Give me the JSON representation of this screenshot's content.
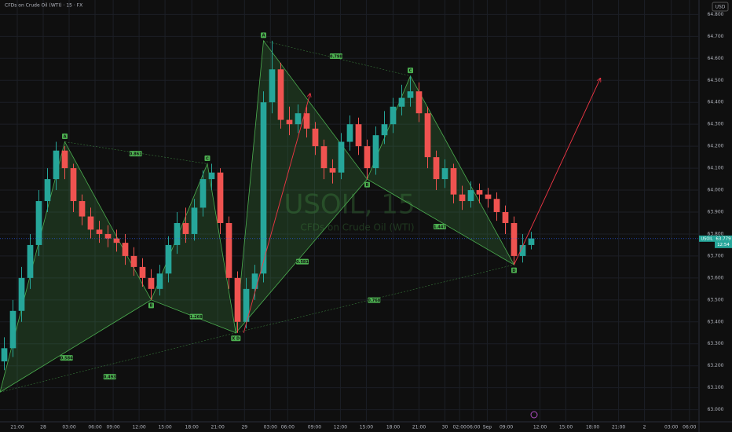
{
  "header": {
    "title": "CFDs on Crude Oil (WTI) · 15 · FX",
    "currency": "USD"
  },
  "chart_data": {
    "type": "candlestick",
    "watermark": "USOIL, 15",
    "watermark_subtitle": "CFDs on Crude Oil (WTI)",
    "symbol": "USOIL",
    "last_price": 63.779,
    "countdown": "12:54",
    "up_color": "#26a69a",
    "down_color": "#ef5350",
    "grid": true,
    "x": [
      0.5,
      1.5,
      2.5,
      3.5,
      4.5,
      5.5,
      6.5,
      7.5,
      8.5,
      9.5,
      10.5,
      11.5,
      12.5,
      13.5,
      14.5,
      15.5,
      16.5,
      17.5,
      18.5,
      19.5,
      20.5,
      21.5,
      22.5,
      23.5,
      24.5,
      25.5,
      26.5,
      27.5,
      28.5,
      29.5,
      30.5,
      31.5,
      32.5,
      33.5,
      34.5,
      35.5,
      36.5,
      37.5,
      38.5,
      39.5,
      40.5,
      41.5,
      42.5,
      43.5,
      44.5,
      45.5,
      46.5,
      47.5,
      48.5,
      49.5,
      50.5,
      51.5,
      52.5,
      53.5,
      54.5,
      55.5,
      56.5,
      57.5,
      58.5,
      59.5,
      60.5,
      61.5
    ],
    "open": [
      63.22,
      63.28,
      63.45,
      63.6,
      63.75,
      63.95,
      64.05,
      64.18,
      64.1,
      63.95,
      63.88,
      63.82,
      63.8,
      63.78,
      63.76,
      63.7,
      63.65,
      63.6,
      63.55,
      63.62,
      63.75,
      63.85,
      63.8,
      63.92,
      64.05,
      64.08,
      63.85,
      63.6,
      63.4,
      63.55,
      63.62,
      64.4,
      64.55,
      64.32,
      64.3,
      64.35,
      64.28,
      64.2,
      64.1,
      64.08,
      64.22,
      64.3,
      64.2,
      64.1,
      64.25,
      64.3,
      64.38,
      64.42,
      64.45,
      64.35,
      64.15,
      64.05,
      64.1,
      63.98,
      63.95,
      64.0,
      63.98,
      63.96,
      63.9,
      63.85,
      63.7,
      63.75
    ],
    "high": [
      63.33,
      63.5,
      63.65,
      63.8,
      64.0,
      64.1,
      64.22,
      64.2,
      64.12,
      63.98,
      63.92,
      63.86,
      63.84,
      63.82,
      63.8,
      63.74,
      63.69,
      63.64,
      63.66,
      63.79,
      63.9,
      63.92,
      63.96,
      64.09,
      64.12,
      64.1,
      63.88,
      63.63,
      63.6,
      63.66,
      64.45,
      64.68,
      64.58,
      64.38,
      64.39,
      64.38,
      64.31,
      64.23,
      64.14,
      64.26,
      64.34,
      64.33,
      64.23,
      64.29,
      64.36,
      64.42,
      64.48,
      64.52,
      64.49,
      64.38,
      64.18,
      64.14,
      64.12,
      64.02,
      64.04,
      64.03,
      64.01,
      63.99,
      63.93,
      63.88,
      63.8,
      63.81
    ],
    "low": [
      63.18,
      63.24,
      63.4,
      63.55,
      63.7,
      63.9,
      64.0,
      64.05,
      63.9,
      63.84,
      63.78,
      63.76,
      63.74,
      63.72,
      63.66,
      63.61,
      63.56,
      63.5,
      63.52,
      63.58,
      63.71,
      63.76,
      63.77,
      63.88,
      64.0,
      63.8,
      63.55,
      63.35,
      63.37,
      63.5,
      63.58,
      64.35,
      64.28,
      64.25,
      64.26,
      64.24,
      64.16,
      64.05,
      64.03,
      64.05,
      64.18,
      64.16,
      64.05,
      64.07,
      64.21,
      64.26,
      64.34,
      64.38,
      64.31,
      64.1,
      64.0,
      64.01,
      63.94,
      63.91,
      63.92,
      63.94,
      63.92,
      63.86,
      63.8,
      63.66,
      63.67,
      63.73
    ],
    "close": [
      63.28,
      63.45,
      63.6,
      63.75,
      63.95,
      64.05,
      64.18,
      64.1,
      63.95,
      63.88,
      63.82,
      63.8,
      63.78,
      63.76,
      63.7,
      63.65,
      63.6,
      63.55,
      63.62,
      63.75,
      63.85,
      63.8,
      63.92,
      64.05,
      64.08,
      63.85,
      63.6,
      63.4,
      63.55,
      63.62,
      64.4,
      64.55,
      64.32,
      64.3,
      64.35,
      64.28,
      64.2,
      64.1,
      64.08,
      64.22,
      64.3,
      64.2,
      64.1,
      64.25,
      64.3,
      64.38,
      64.42,
      64.45,
      64.35,
      64.15,
      64.05,
      64.1,
      63.98,
      63.95,
      64.0,
      63.98,
      63.96,
      63.9,
      63.85,
      63.7,
      63.75,
      63.78
    ],
    "xlim": [
      0,
      81
    ],
    "xticks": [
      {
        "value": 2,
        "label": "21:00"
      },
      {
        "value": 5,
        "label": "28"
      },
      {
        "value": 8,
        "label": "03:00"
      },
      {
        "value": 11,
        "label": "06:00"
      },
      {
        "value": 13.1,
        "label": "09:00"
      },
      {
        "value": 16.1,
        "label": "12:00"
      },
      {
        "value": 19.1,
        "label": "15:00"
      },
      {
        "value": 22.2,
        "label": "18:00"
      },
      {
        "value": 25.2,
        "label": "21:00"
      },
      {
        "value": 28.3,
        "label": "29"
      },
      {
        "value": 31.3,
        "label": "03:00"
      },
      {
        "value": 33.3,
        "label": "06:00"
      },
      {
        "value": 36.4,
        "label": "09:00"
      },
      {
        "value": 39.4,
        "label": "12:00"
      },
      {
        "value": 42.4,
        "label": "15:00"
      },
      {
        "value": 45.5,
        "label": "18:00"
      },
      {
        "value": 48.5,
        "label": "21:00"
      },
      {
        "value": 51.5,
        "label": "30"
      },
      {
        "value": 53.2,
        "label": "02:00"
      },
      {
        "value": 54.8,
        "label": "06:00"
      },
      {
        "value": 56.4,
        "label": "Sep"
      },
      {
        "value": 58.6,
        "label": "09:00"
      },
      {
        "value": 62.5,
        "label": "12:00"
      },
      {
        "value": 65.5,
        "label": "15:00"
      },
      {
        "value": 68.6,
        "label": "18:00"
      },
      {
        "value": 71.6,
        "label": "21:00"
      },
      {
        "value": 74.6,
        "label": "2"
      },
      {
        "value": 77.7,
        "label": "03:00"
      },
      {
        "value": 79.8,
        "label": "06:00"
      }
    ],
    "ylim": [
      62.97,
      64.83
    ],
    "yticks": [
      {
        "value": 63.0,
        "label": "63.000"
      },
      {
        "value": 63.1,
        "label": "63.100"
      },
      {
        "value": 63.2,
        "label": "63.200"
      },
      {
        "value": 63.3,
        "label": "63.300"
      },
      {
        "value": 63.4,
        "label": "63.400"
      },
      {
        "value": 63.5,
        "label": "63.500"
      },
      {
        "value": 63.6,
        "label": "63.600"
      },
      {
        "value": 63.7,
        "label": "63.700"
      },
      {
        "value": 63.8,
        "label": "63.800"
      },
      {
        "value": 63.9,
        "label": "63.900"
      },
      {
        "value": 64.0,
        "label": "64.000"
      },
      {
        "value": 64.1,
        "label": "64.100"
      },
      {
        "value": 64.2,
        "label": "64.200"
      },
      {
        "value": 64.3,
        "label": "64.300"
      },
      {
        "value": 64.4,
        "label": "64.400"
      },
      {
        "value": 64.5,
        "label": "64.500"
      },
      {
        "value": 64.6,
        "label": "64.600"
      },
      {
        "value": 64.7,
        "label": "64.700"
      },
      {
        "value": 64.8,
        "label": "64.800"
      }
    ],
    "patterns": [
      {
        "color": "#4caf50",
        "points": [
          {
            "label": null,
            "x": 0,
            "y": 63.08
          },
          {
            "label": "A",
            "x": 7.5,
            "y": 64.22
          },
          {
            "label": "B",
            "x": 17.5,
            "y": 63.5
          },
          {
            "label": "C",
            "x": 24,
            "y": 64.12
          },
          {
            "label": "X D",
            "x": 27.3,
            "y": 63.35
          }
        ],
        "ratios": [
          {
            "text": "0.861",
            "x": 15.7,
            "y": 64.166
          },
          {
            "text": "1.268",
            "x": 22.7,
            "y": 63.424
          },
          {
            "text": "0.584",
            "x": 7.7,
            "y": 63.236
          },
          {
            "text": "0.493",
            "x": 12.7,
            "y": 63.15
          }
        ]
      },
      {
        "color": "#4caf50",
        "points": [
          {
            "label": null,
            "x": 27.3,
            "y": 63.35
          },
          {
            "label": "A",
            "x": 30.5,
            "y": 64.68
          },
          {
            "label": "B",
            "x": 42.5,
            "y": 64.05
          },
          {
            "label": "C",
            "x": 47.5,
            "y": 64.52
          },
          {
            "label": "D",
            "x": 59.5,
            "y": 63.66
          }
        ],
        "ratios": [
          {
            "text": "0.798",
            "x": 38.9,
            "y": 64.61
          },
          {
            "text": "0.581",
            "x": 35,
            "y": 63.674
          },
          {
            "text": "0.768",
            "x": 43.3,
            "y": 63.499
          },
          {
            "text": "1.447",
            "x": 50.9,
            "y": 63.834
          }
        ]
      }
    ],
    "projections": [
      {
        "color": "#f23645",
        "x": [
          28.2,
          35.9
        ],
        "y": [
          63.35,
          64.44
        ]
      },
      {
        "color": "#f23645",
        "x": [
          59.5,
          69.5
        ],
        "y": [
          63.66,
          64.51
        ]
      }
    ]
  }
}
